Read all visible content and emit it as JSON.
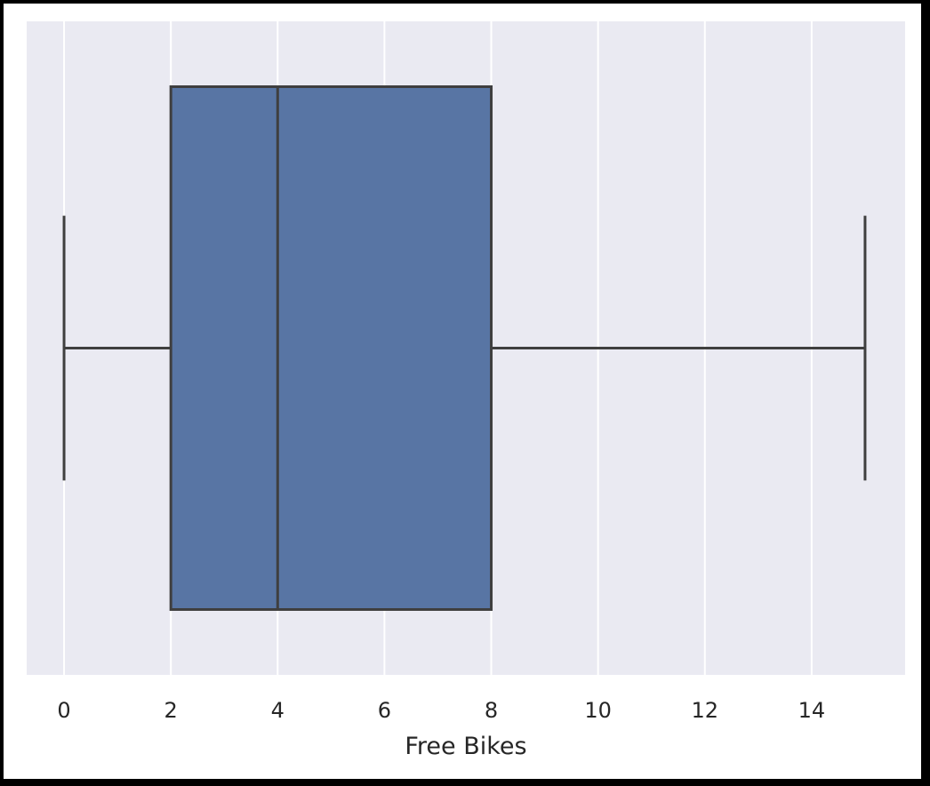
{
  "chart_data": {
    "type": "box",
    "xlabel": "Free Bikes",
    "xlim": [
      -0.7,
      15.75
    ],
    "xticks": [
      0,
      2,
      4,
      6,
      8,
      10,
      12,
      14
    ],
    "grid": true,
    "box": {
      "min": 0,
      "q1": 2,
      "median": 4,
      "q3": 8,
      "max": 15
    },
    "colors": {
      "background": "#eaeaf2",
      "box_fill": "#5875a4",
      "line": "#3f3f3f",
      "grid": "#ffffff"
    }
  }
}
